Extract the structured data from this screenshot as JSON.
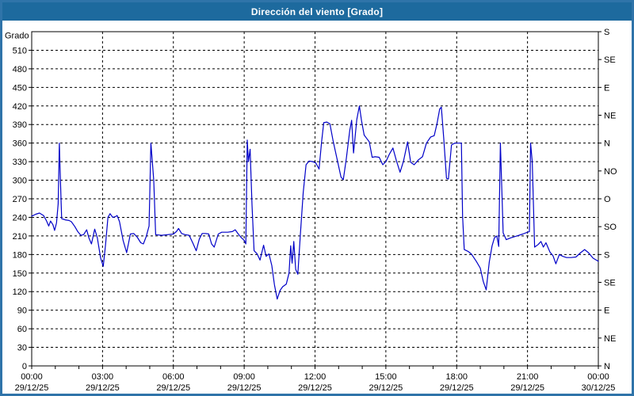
{
  "window": {
    "title": "Dirección del viento [Grado]"
  },
  "colors": {
    "titlebar": "#1d6a9e",
    "window_border": "#2f74a9",
    "plot_background": "#ffffff",
    "grid": "#000000",
    "axis": "#000000",
    "line": "#0000c8",
    "text": "#000000",
    "title_text": "#ffffff"
  },
  "chart_data": {
    "type": "line",
    "title": "Dirección del viento [Grado]",
    "ylabel_left": "Grado",
    "ylim": [
      0,
      540
    ],
    "xlim_hours": [
      0,
      24
    ],
    "grid_y_every": 30,
    "grid_x_hours": [
      3,
      6,
      9,
      12,
      15,
      18,
      21
    ],
    "y_left_ticks": [
      0,
      30,
      60,
      90,
      120,
      150,
      180,
      210,
      240,
      270,
      300,
      330,
      360,
      390,
      420,
      450,
      480,
      510
    ],
    "right_axis": {
      "ticks": [
        {
          "deg": 0,
          "label": "N"
        },
        {
          "deg": 45,
          "label": "NE"
        },
        {
          "deg": 90,
          "label": "E"
        },
        {
          "deg": 135,
          "label": "SE"
        },
        {
          "deg": 180,
          "label": "S"
        },
        {
          "deg": 225,
          "label": "SO"
        },
        {
          "deg": 270,
          "label": "O"
        },
        {
          "deg": 315,
          "label": "NO"
        },
        {
          "deg": 360,
          "label": "N"
        },
        {
          "deg": 405,
          "label": "NE"
        },
        {
          "deg": 450,
          "label": "E"
        },
        {
          "deg": 495,
          "label": "SE"
        },
        {
          "deg": 540,
          "label": "S"
        }
      ]
    },
    "x_major_ticks": [
      {
        "hour": 0,
        "time": "00:00",
        "date": "29/12/25"
      },
      {
        "hour": 3,
        "time": "03:00",
        "date": "29/12/25"
      },
      {
        "hour": 6,
        "time": "06:00",
        "date": "29/12/25"
      },
      {
        "hour": 9,
        "time": "09:00",
        "date": "29/12/25"
      },
      {
        "hour": 12,
        "time": "12:00",
        "date": "29/12/25"
      },
      {
        "hour": 15,
        "time": "15:00",
        "date": "29/12/25"
      },
      {
        "hour": 18,
        "time": "18:00",
        "date": "29/12/25"
      },
      {
        "hour": 21,
        "time": "21:00",
        "date": "29/12/25"
      },
      {
        "hour": 24,
        "time": "00:00",
        "date": "30/12/25"
      }
    ],
    "legend": "none",
    "series": [
      {
        "name": "Dirección del viento",
        "unit": "Grado",
        "color": "#0000c8",
        "points": [
          [
            0.0,
            242
          ],
          [
            0.17,
            245
          ],
          [
            0.33,
            247
          ],
          [
            0.5,
            243
          ],
          [
            0.63,
            234
          ],
          [
            0.72,
            226
          ],
          [
            0.8,
            234
          ],
          [
            0.9,
            228
          ],
          [
            0.97,
            219
          ],
          [
            1.05,
            231
          ],
          [
            1.12,
            262
          ],
          [
            1.17,
            360
          ],
          [
            1.22,
            298
          ],
          [
            1.27,
            238
          ],
          [
            1.42,
            236
          ],
          [
            1.58,
            235
          ],
          [
            1.68,
            233
          ],
          [
            1.83,
            225
          ],
          [
            1.95,
            217
          ],
          [
            2.08,
            211
          ],
          [
            2.2,
            212
          ],
          [
            2.33,
            220
          ],
          [
            2.42,
            207
          ],
          [
            2.53,
            197
          ],
          [
            2.67,
            221
          ],
          [
            2.78,
            207
          ],
          [
            2.92,
            174
          ],
          [
            3.03,
            161
          ],
          [
            3.13,
            196
          ],
          [
            3.23,
            240
          ],
          [
            3.32,
            246
          ],
          [
            3.43,
            240
          ],
          [
            3.53,
            241
          ],
          [
            3.62,
            243
          ],
          [
            3.72,
            233
          ],
          [
            3.87,
            203
          ],
          [
            4.02,
            183
          ],
          [
            4.18,
            213
          ],
          [
            4.32,
            214
          ],
          [
            4.47,
            208
          ],
          [
            4.62,
            199
          ],
          [
            4.73,
            197
          ],
          [
            4.85,
            209
          ],
          [
            4.97,
            226
          ],
          [
            5.05,
            360
          ],
          [
            5.17,
            300
          ],
          [
            5.25,
            212
          ],
          [
            5.5,
            211
          ],
          [
            5.75,
            212
          ],
          [
            6.0,
            213
          ],
          [
            6.13,
            217
          ],
          [
            6.22,
            222
          ],
          [
            6.35,
            214
          ],
          [
            6.5,
            212
          ],
          [
            6.67,
            211
          ],
          [
            6.83,
            198
          ],
          [
            6.97,
            186
          ],
          [
            7.1,
            205
          ],
          [
            7.22,
            214
          ],
          [
            7.37,
            214
          ],
          [
            7.5,
            213
          ],
          [
            7.62,
            197
          ],
          [
            7.73,
            192
          ],
          [
            7.9,
            213
          ],
          [
            8.05,
            216
          ],
          [
            8.3,
            216
          ],
          [
            8.5,
            217
          ],
          [
            8.62,
            220
          ],
          [
            8.75,
            213
          ],
          [
            8.88,
            207
          ],
          [
            9.0,
            203
          ],
          [
            9.07,
            197
          ],
          [
            9.13,
            365
          ],
          [
            9.18,
            330
          ],
          [
            9.25,
            350
          ],
          [
            9.33,
            260
          ],
          [
            9.42,
            186
          ],
          [
            9.55,
            181
          ],
          [
            9.67,
            171
          ],
          [
            9.82,
            195
          ],
          [
            9.93,
            177
          ],
          [
            10.05,
            181
          ],
          [
            10.17,
            162
          ],
          [
            10.28,
            131
          ],
          [
            10.4,
            108
          ],
          [
            10.52,
            122
          ],
          [
            10.63,
            128
          ],
          [
            10.78,
            132
          ],
          [
            10.9,
            150
          ],
          [
            10.97,
            194
          ],
          [
            11.03,
            166
          ],
          [
            11.1,
            201
          ],
          [
            11.18,
            156
          ],
          [
            11.27,
            148
          ],
          [
            11.38,
            212
          ],
          [
            11.5,
            280
          ],
          [
            11.62,
            325
          ],
          [
            11.75,
            331
          ],
          [
            11.9,
            330
          ],
          [
            12.03,
            328
          ],
          [
            12.17,
            318
          ],
          [
            12.28,
            362
          ],
          [
            12.37,
            393
          ],
          [
            12.5,
            394
          ],
          [
            12.63,
            391
          ],
          [
            12.77,
            363
          ],
          [
            12.93,
            335
          ],
          [
            13.1,
            305
          ],
          [
            13.2,
            301
          ],
          [
            13.33,
            336
          ],
          [
            13.47,
            380
          ],
          [
            13.55,
            397
          ],
          [
            13.63,
            344
          ],
          [
            13.77,
            398
          ],
          [
            13.88,
            420
          ],
          [
            13.97,
            396
          ],
          [
            14.08,
            373
          ],
          [
            14.2,
            367
          ],
          [
            14.3,
            362
          ],
          [
            14.42,
            337
          ],
          [
            14.55,
            338
          ],
          [
            14.72,
            337
          ],
          [
            14.87,
            325
          ],
          [
            15.0,
            330
          ],
          [
            15.15,
            342
          ],
          [
            15.3,
            352
          ],
          [
            15.45,
            331
          ],
          [
            15.6,
            313
          ],
          [
            15.75,
            331
          ],
          [
            15.92,
            362
          ],
          [
            16.05,
            329
          ],
          [
            16.2,
            325
          ],
          [
            16.38,
            333
          ],
          [
            16.55,
            338
          ],
          [
            16.72,
            360
          ],
          [
            16.9,
            370
          ],
          [
            17.05,
            372
          ],
          [
            17.17,
            392
          ],
          [
            17.28,
            415
          ],
          [
            17.35,
            418
          ],
          [
            17.45,
            368
          ],
          [
            17.57,
            303
          ],
          [
            17.65,
            302
          ],
          [
            17.78,
            357
          ],
          [
            17.92,
            360
          ],
          [
            18.08,
            360
          ],
          [
            18.2,
            360
          ],
          [
            18.25,
            242
          ],
          [
            18.32,
            188
          ],
          [
            18.48,
            185
          ],
          [
            18.62,
            181
          ],
          [
            18.83,
            169
          ],
          [
            19.0,
            158
          ],
          [
            19.13,
            136
          ],
          [
            19.25,
            123
          ],
          [
            19.38,
            168
          ],
          [
            19.5,
            194
          ],
          [
            19.6,
            207
          ],
          [
            19.7,
            210
          ],
          [
            19.78,
            193
          ],
          [
            19.85,
            360
          ],
          [
            19.97,
            215
          ],
          [
            20.1,
            204
          ],
          [
            20.3,
            207
          ],
          [
            20.55,
            210
          ],
          [
            20.8,
            213
          ],
          [
            21.0,
            216
          ],
          [
            21.08,
            217
          ],
          [
            21.13,
            360
          ],
          [
            21.2,
            330
          ],
          [
            21.3,
            192
          ],
          [
            21.45,
            196
          ],
          [
            21.57,
            201
          ],
          [
            21.67,
            192
          ],
          [
            21.78,
            199
          ],
          [
            21.95,
            184
          ],
          [
            22.08,
            178
          ],
          [
            22.2,
            165
          ],
          [
            22.35,
            180
          ],
          [
            22.5,
            177
          ],
          [
            22.65,
            175
          ],
          [
            22.85,
            175
          ],
          [
            23.05,
            176
          ],
          [
            23.25,
            183
          ],
          [
            23.42,
            188
          ],
          [
            23.58,
            183
          ],
          [
            23.78,
            174
          ],
          [
            24.0,
            169
          ]
        ]
      }
    ]
  }
}
